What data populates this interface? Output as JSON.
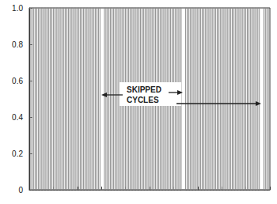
{
  "chart_data": {
    "type": "line",
    "line_style": "step",
    "color": "#8c8c8c",
    "tick_labels": "y",
    "grid": false,
    "annotations": [
      {
        "text": "SKIPPED\nCYCLES"
      }
    ],
    "xlim": [
      0,
      80
    ],
    "xticks": [
      0,
      8,
      16,
      24,
      32,
      40,
      48,
      56,
      64,
      72,
      80
    ],
    "ylim": [
      0,
      1
    ],
    "yticks": [
      0,
      0.2,
      0.4,
      0.6,
      0.8,
      {
        "value": 1,
        "label": "1.0"
      }
    ],
    "x": [
      0,
      0.5,
      1,
      1.5,
      2,
      2.5,
      3,
      3.5,
      4,
      4.5,
      5,
      5.5,
      6,
      6.5,
      7,
      7.5,
      8,
      8.5,
      9,
      9.5,
      10,
      10.5,
      11,
      11.5,
      12,
      12.5,
      13,
      13.5,
      14,
      14.5,
      15,
      15.5,
      16,
      16.5,
      17,
      17.5,
      18,
      18.5,
      19,
      19.5,
      20,
      20.5,
      21,
      21.5,
      22,
      22.5,
      23,
      23.5,
      24,
      24.5,
      25,
      25.5,
      26,
      26.5,
      27,
      27.5,
      28,
      28.5,
      29,
      29.5,
      30,
      30.5,
      31,
      31.5,
      32,
      32.5,
      33,
      33.5,
      34,
      34.5,
      35,
      35.5,
      36,
      36.5,
      37,
      37.5,
      38,
      38.5,
      39,
      39.5,
      40,
      40.5,
      41,
      41.5,
      42,
      42.5,
      43,
      43.5,
      44,
      44.5,
      45,
      45.5,
      46,
      46.5,
      47,
      47.5,
      48,
      48.5,
      49,
      49.5,
      50,
      50.5,
      51,
      51.5,
      52,
      52.5,
      53,
      53.5,
      54,
      54.5,
      55,
      55.5,
      56,
      56.5,
      57,
      57.5,
      58,
      58.5,
      59,
      59.5,
      60,
      60.5,
      61,
      61.5,
      62,
      62.5,
      63,
      63.5,
      64,
      64.5,
      65,
      65.5,
      66,
      66.5,
      67,
      67.5,
      68,
      68.5,
      69,
      69.5,
      70,
      70.5,
      71,
      71.5,
      72,
      72.5,
      73,
      73.5,
      74,
      74.5,
      75,
      75.5,
      76,
      76.5,
      77,
      77.5,
      78,
      78.5,
      79,
      79.5,
      80
    ],
    "values": [
      1,
      0,
      1,
      0,
      1,
      0,
      1,
      0,
      1,
      0,
      1,
      0,
      1,
      0,
      1,
      0,
      1,
      0,
      1,
      0,
      1,
      0,
      1,
      0,
      1,
      0,
      1,
      0,
      1,
      0,
      1,
      0,
      1,
      0,
      1,
      0,
      1,
      0,
      1,
      0,
      1,
      0,
      1,
      0,
      1,
      0,
      1,
      0,
      0,
      0,
      1,
      0,
      1,
      0,
      1,
      0,
      1,
      0,
      1,
      0,
      1,
      0,
      1,
      0,
      1,
      0,
      1,
      0,
      1,
      0,
      1,
      0,
      1,
      0,
      1,
      0,
      1,
      0,
      1,
      0,
      1,
      0,
      1,
      0,
      1,
      0,
      1,
      0,
      1,
      0,
      1,
      0,
      1,
      0,
      1,
      0,
      1,
      0,
      1,
      0,
      1,
      0,
      0,
      0,
      1,
      0,
      1,
      0,
      1,
      0,
      1,
      0,
      1,
      0,
      1,
      0,
      1,
      0,
      1,
      0,
      1,
      0,
      1,
      0,
      1,
      0,
      1,
      0,
      1,
      0,
      1,
      0,
      1,
      0,
      1,
      0,
      1,
      0,
      1,
      0,
      1,
      0,
      1,
      0,
      1,
      0,
      1,
      0,
      1,
      0,
      1,
      0,
      1,
      0,
      0,
      0,
      1,
      0,
      1,
      0,
      0
    ]
  }
}
